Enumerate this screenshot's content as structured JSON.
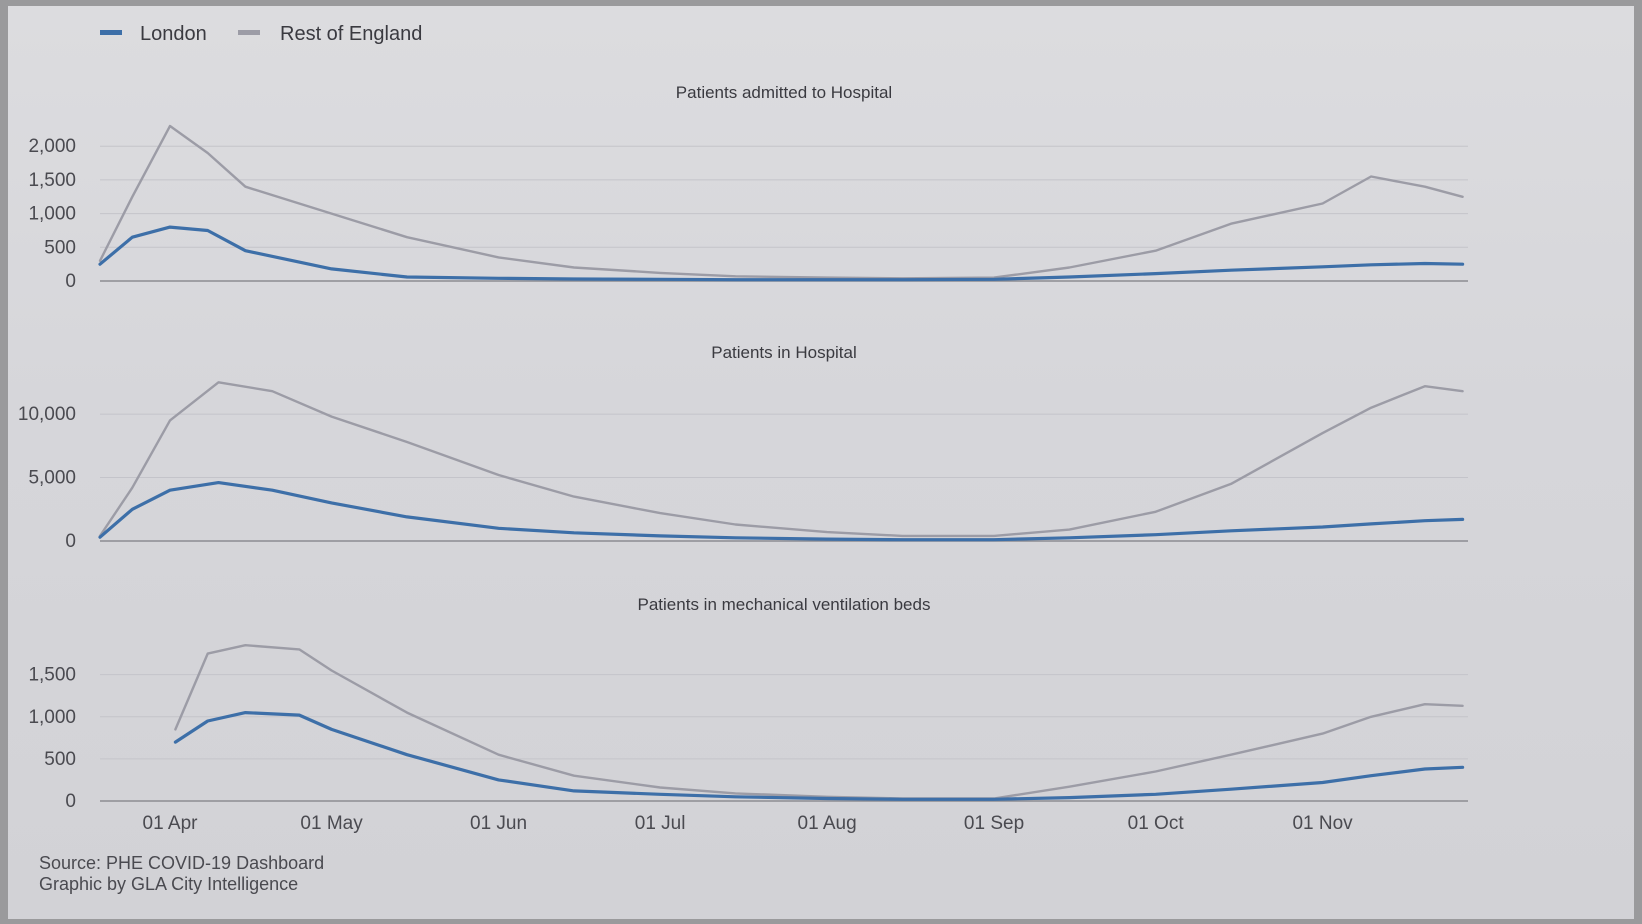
{
  "legend": [
    {
      "name": "London",
      "color": "#3d6fa8"
    },
    {
      "name": "Rest of England",
      "color": "#9c9ca6"
    }
  ],
  "x_ticks": [
    "01 Apr",
    "01 May",
    "01 Jun",
    "01 Jul",
    "01 Aug",
    "01 Sep",
    "01 Oct",
    "01 Nov"
  ],
  "source_line": "Source: PHE COVID-19 Dashboard",
  "credit_line": "Graphic by GLA City Intelligence",
  "chart_data": [
    {
      "type": "line",
      "title": "Patients admitted to Hospital",
      "yticks": [
        0,
        500,
        1000,
        1500,
        2000
      ],
      "ytick_labels": [
        "0",
        "500",
        "1,000",
        "1,500",
        "2,000"
      ],
      "ylim": [
        0,
        2300
      ],
      "x": [
        "2020-03-19",
        "2020-03-25",
        "2020-04-01",
        "2020-04-08",
        "2020-04-15",
        "2020-05-01",
        "2020-05-15",
        "2020-06-01",
        "2020-06-15",
        "2020-07-01",
        "2020-07-15",
        "2020-08-01",
        "2020-08-15",
        "2020-09-01",
        "2020-09-15",
        "2020-10-01",
        "2020-10-15",
        "2020-11-01",
        "2020-11-10",
        "2020-11-20",
        "2020-11-27"
      ],
      "series": [
        {
          "name": "London",
          "values": [
            250,
            650,
            800,
            750,
            450,
            180,
            60,
            40,
            30,
            25,
            20,
            20,
            20,
            25,
            60,
            110,
            160,
            210,
            240,
            260,
            250
          ]
        },
        {
          "name": "Rest of England",
          "values": [
            300,
            1250,
            2300,
            1900,
            1400,
            1000,
            650,
            350,
            200,
            120,
            70,
            50,
            40,
            50,
            200,
            450,
            850,
            1150,
            1550,
            1400,
            1250
          ]
        }
      ]
    },
    {
      "type": "line",
      "title": "Patients in Hospital",
      "yticks": [
        0,
        5000,
        10000
      ],
      "ytick_labels": [
        "0",
        "5,000",
        "10,000"
      ],
      "ylim": [
        0,
        13000
      ],
      "x": [
        "2020-03-19",
        "2020-03-25",
        "2020-04-01",
        "2020-04-10",
        "2020-04-20",
        "2020-05-01",
        "2020-05-15",
        "2020-06-01",
        "2020-06-15",
        "2020-07-01",
        "2020-07-15",
        "2020-08-01",
        "2020-08-15",
        "2020-09-01",
        "2020-09-15",
        "2020-10-01",
        "2020-10-15",
        "2020-11-01",
        "2020-11-10",
        "2020-11-20",
        "2020-11-27"
      ],
      "series": [
        {
          "name": "London",
          "values": [
            300,
            2500,
            4000,
            4600,
            4000,
            3000,
            1900,
            1000,
            650,
            400,
            250,
            150,
            100,
            100,
            250,
            500,
            800,
            1100,
            1350,
            1600,
            1700
          ]
        },
        {
          "name": "Rest of England",
          "values": [
            400,
            4200,
            9500,
            12500,
            11800,
            9800,
            7800,
            5200,
            3500,
            2200,
            1300,
            700,
            400,
            400,
            900,
            2300,
            4500,
            8500,
            10500,
            12200,
            11800
          ]
        }
      ]
    },
    {
      "type": "line",
      "title": "Patients in mechanical ventilation beds",
      "yticks": [
        0,
        500,
        1000,
        1500
      ],
      "ytick_labels": [
        "0",
        "500",
        "1,000",
        "1,500"
      ],
      "ylim": [
        0,
        1900
      ],
      "x": [
        "2020-04-02",
        "2020-04-08",
        "2020-04-15",
        "2020-04-25",
        "2020-05-01",
        "2020-05-15",
        "2020-06-01",
        "2020-06-15",
        "2020-07-01",
        "2020-07-15",
        "2020-08-01",
        "2020-08-15",
        "2020-09-01",
        "2020-09-15",
        "2020-10-01",
        "2020-10-15",
        "2020-11-01",
        "2020-11-10",
        "2020-11-20",
        "2020-11-27"
      ],
      "series": [
        {
          "name": "London",
          "values": [
            700,
            950,
            1050,
            1020,
            850,
            550,
            250,
            120,
            80,
            50,
            30,
            20,
            20,
            40,
            80,
            140,
            220,
            300,
            380,
            400
          ]
        },
        {
          "name": "Rest of England",
          "values": [
            850,
            1750,
            1850,
            1800,
            1550,
            1050,
            550,
            300,
            160,
            90,
            50,
            30,
            30,
            170,
            350,
            550,
            800,
            1000,
            1150,
            1130
          ]
        }
      ]
    }
  ]
}
